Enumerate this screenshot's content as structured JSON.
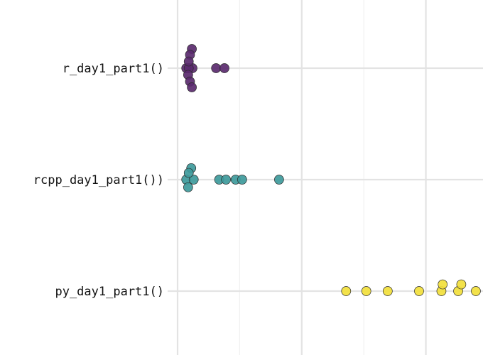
{
  "chart_data": {
    "type": "scatter",
    "subtype": "beeswarm",
    "orientation": "horizontal",
    "xlim": [
      0,
      1
    ],
    "x_major_breaks": [
      0,
      0.4,
      0.8
    ],
    "x_minor_breaks": [
      0.2,
      0.6
    ],
    "grid": true,
    "legend": "none",
    "categories": [
      "r_day1_part1()",
      "rcpp_day1_part1())",
      "py_day1_part1()"
    ],
    "series": [
      {
        "category": "r_day1_part1()",
        "color": "#5a2a6e",
        "points": [
          {
            "x": 0.048,
            "y": 0.0
          },
          {
            "x": 0.028,
            "y": 0.0
          },
          {
            "x": 0.036,
            "y": 0.0
          },
          {
            "x": 0.124,
            "y": 0.0
          },
          {
            "x": 0.151,
            "y": 0.0
          },
          {
            "x": 0.046,
            "y": 1.0
          },
          {
            "x": 0.04,
            "y": 0.7
          },
          {
            "x": 0.036,
            "y": 0.35
          },
          {
            "x": 0.034,
            "y": -0.35
          },
          {
            "x": 0.04,
            "y": -0.7
          },
          {
            "x": 0.046,
            "y": -1.0
          }
        ]
      },
      {
        "category": "rcpp_day1_part1())",
        "color": "#3e9a9b",
        "points": [
          {
            "x": 0.028,
            "y": 0.0
          },
          {
            "x": 0.052,
            "y": 0.0
          },
          {
            "x": 0.134,
            "y": 0.0
          },
          {
            "x": 0.156,
            "y": 0.0
          },
          {
            "x": 0.187,
            "y": 0.0
          },
          {
            "x": 0.208,
            "y": 0.0
          },
          {
            "x": 0.327,
            "y": 0.0
          },
          {
            "x": 0.044,
            "y": 0.6
          },
          {
            "x": 0.036,
            "y": 0.35
          },
          {
            "x": 0.034,
            "y": -0.4
          }
        ]
      },
      {
        "category": "py_day1_part1()",
        "color": "#f2df3c",
        "points": [
          {
            "x": 0.543,
            "y": 0.0
          },
          {
            "x": 0.608,
            "y": 0.0
          },
          {
            "x": 0.677,
            "y": 0.0
          },
          {
            "x": 0.778,
            "y": 0.0
          },
          {
            "x": 0.85,
            "y": 0.0
          },
          {
            "x": 0.904,
            "y": 0.0
          },
          {
            "x": 0.961,
            "y": 0.0
          },
          {
            "x": 0.854,
            "y": 0.35
          },
          {
            "x": 0.914,
            "y": 0.35
          }
        ]
      }
    ]
  }
}
